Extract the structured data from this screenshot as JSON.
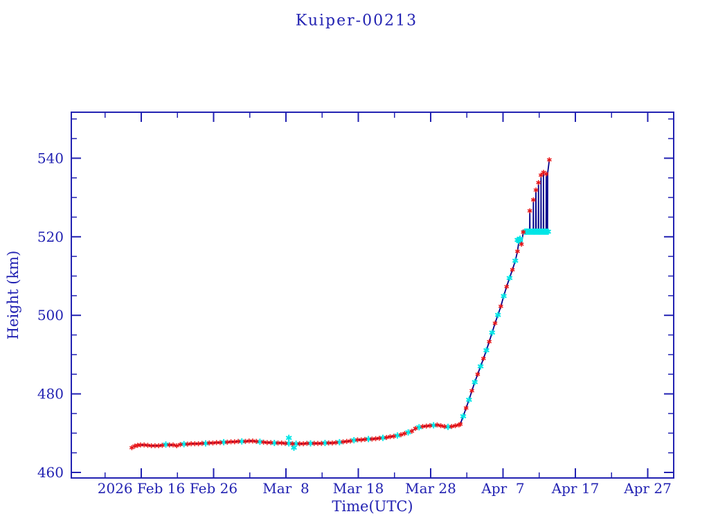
{
  "chart_data": {
    "type": "line",
    "title": "Kuiper-00213",
    "xlabel": "Time(UTC)",
    "ylabel": "Height (km)",
    "x_unit": "days since 2026 Feb 16 (UTC)",
    "xlim_days": [
      -9.7,
      73.6
    ],
    "ylim": [
      458.4,
      552.6
    ],
    "grid": false,
    "legend": "none",
    "colors": {
      "axis": "#2222b2",
      "track_line": "#00008b",
      "red_marker": "#e81416",
      "cyan_marker": "#00e6e6"
    },
    "x_ticks_major": [
      {
        "d": 0,
        "label": "2026 Feb 16"
      },
      {
        "d": 10,
        "label": "Feb 26"
      },
      {
        "d": 20,
        "label": "Mar  8"
      },
      {
        "d": 30,
        "label": "Mar 18"
      },
      {
        "d": 40,
        "label": "Mar 28"
      },
      {
        "d": 50,
        "label": "Apr  7"
      },
      {
        "d": 60,
        "label": "Apr 17"
      },
      {
        "d": 70,
        "label": "Apr 27"
      }
    ],
    "x_ticks_minor_days": [
      -5,
      5,
      15,
      25,
      35,
      45,
      55,
      65
    ],
    "y_ticks_major": [
      460,
      480,
      500,
      520,
      540
    ],
    "y_ticks_minor": [
      465,
      470,
      475,
      485,
      490,
      495,
      505,
      510,
      515,
      525,
      530,
      535,
      545,
      550
    ],
    "track_points_format": "[days_since_Feb16, height_km, marker(0=none,1=red,2=cyan)]",
    "track": [
      [
        -1.3,
        466.3,
        1
      ],
      [
        -0.9,
        466.7,
        1
      ],
      [
        -0.5,
        466.9,
        1
      ],
      [
        -0.1,
        467.0,
        1
      ],
      [
        0.4,
        467.0,
        1
      ],
      [
        0.9,
        466.9,
        1
      ],
      [
        1.4,
        466.8,
        1
      ],
      [
        1.9,
        466.8,
        1
      ],
      [
        2.4,
        466.8,
        1
      ],
      [
        2.9,
        466.9,
        1
      ],
      [
        3.4,
        467.1,
        2
      ],
      [
        3.9,
        467.0,
        1
      ],
      [
        4.4,
        467.0,
        1
      ],
      [
        4.9,
        466.8,
        1
      ],
      [
        5.4,
        467.1,
        1
      ],
      [
        5.9,
        467.2,
        2
      ],
      [
        6.4,
        467.2,
        1
      ],
      [
        6.9,
        467.3,
        1
      ],
      [
        7.4,
        467.3,
        1
      ],
      [
        7.9,
        467.3,
        1
      ],
      [
        8.4,
        467.4,
        1
      ],
      [
        8.9,
        467.4,
        2
      ],
      [
        9.4,
        467.5,
        1
      ],
      [
        9.9,
        467.5,
        1
      ],
      [
        10.4,
        467.6,
        1
      ],
      [
        10.9,
        467.6,
        1
      ],
      [
        11.4,
        467.7,
        2
      ],
      [
        11.9,
        467.7,
        1
      ],
      [
        12.4,
        467.8,
        1
      ],
      [
        12.9,
        467.8,
        1
      ],
      [
        13.4,
        467.9,
        1
      ],
      [
        13.9,
        467.9,
        2
      ],
      [
        14.4,
        467.9,
        1
      ],
      [
        14.9,
        468.0,
        1
      ],
      [
        15.4,
        468.0,
        1
      ],
      [
        15.9,
        467.9,
        1
      ],
      [
        16.4,
        467.8,
        2
      ],
      [
        16.9,
        467.7,
        1
      ],
      [
        17.4,
        467.6,
        1
      ],
      [
        17.9,
        467.6,
        1
      ],
      [
        18.4,
        467.5,
        2
      ],
      [
        18.9,
        467.5,
        1
      ],
      [
        19.4,
        467.5,
        1
      ],
      [
        19.9,
        467.4,
        1
      ],
      [
        20.4,
        467.4,
        2
      ],
      [
        20.9,
        467.3,
        1
      ],
      [
        21.4,
        467.3,
        2
      ],
      [
        21.9,
        467.3,
        1
      ],
      [
        22.4,
        467.3,
        1
      ],
      [
        22.9,
        467.4,
        1
      ],
      [
        23.4,
        467.4,
        2
      ],
      [
        23.9,
        467.4,
        1
      ],
      [
        24.4,
        467.4,
        1
      ],
      [
        24.9,
        467.4,
        1
      ],
      [
        25.4,
        467.5,
        2
      ],
      [
        25.9,
        467.5,
        1
      ],
      [
        26.4,
        467.5,
        1
      ],
      [
        26.9,
        467.6,
        1
      ],
      [
        27.4,
        467.7,
        2
      ],
      [
        27.9,
        467.8,
        1
      ],
      [
        28.4,
        467.9,
        1
      ],
      [
        28.9,
        468.0,
        1
      ],
      [
        29.4,
        468.2,
        2
      ],
      [
        29.9,
        468.3,
        1
      ],
      [
        30.4,
        468.3,
        1
      ],
      [
        30.9,
        468.4,
        1
      ],
      [
        31.4,
        468.5,
        2
      ],
      [
        31.9,
        468.5,
        1
      ],
      [
        32.4,
        468.6,
        1
      ],
      [
        32.9,
        468.7,
        1
      ],
      [
        33.4,
        468.8,
        2
      ],
      [
        33.9,
        468.9,
        1
      ],
      [
        34.4,
        469.1,
        1
      ],
      [
        34.9,
        469.2,
        1
      ],
      [
        35.4,
        469.4,
        2
      ],
      [
        35.9,
        469.6,
        1
      ],
      [
        36.4,
        469.9,
        1
      ],
      [
        36.9,
        470.2,
        2
      ],
      [
        37.4,
        470.5,
        1
      ],
      [
        37.9,
        471.2,
        1
      ],
      [
        38.4,
        471.5,
        2
      ],
      [
        38.9,
        471.7,
        1
      ],
      [
        39.4,
        471.8,
        1
      ],
      [
        39.9,
        471.9,
        1
      ],
      [
        40.4,
        472.0,
        2
      ],
      [
        40.9,
        472.1,
        1
      ],
      [
        41.4,
        471.9,
        1
      ],
      [
        41.9,
        471.7,
        1
      ],
      [
        42.4,
        471.6,
        2
      ],
      [
        42.9,
        471.7,
        1
      ],
      [
        43.4,
        471.9,
        1
      ],
      [
        43.9,
        472.1,
        1
      ],
      [
        44.1,
        472.3,
        1
      ],
      [
        44.5,
        474.3,
        2
      ],
      [
        44.9,
        476.4,
        1
      ],
      [
        45.3,
        478.5,
        2
      ],
      [
        45.7,
        480.8,
        1
      ],
      [
        46.1,
        483.0,
        2
      ],
      [
        46.5,
        485.0,
        1
      ],
      [
        46.9,
        487.0,
        2
      ],
      [
        47.3,
        489.0,
        1
      ],
      [
        47.7,
        491.1,
        2
      ],
      [
        48.1,
        493.3,
        1
      ],
      [
        48.5,
        495.6,
        2
      ],
      [
        48.9,
        498.0,
        1
      ],
      [
        49.3,
        500.1,
        2
      ],
      [
        49.7,
        502.3,
        1
      ],
      [
        50.1,
        504.9,
        2
      ],
      [
        50.5,
        507.3,
        1
      ],
      [
        50.9,
        509.5,
        2
      ],
      [
        51.3,
        511.6,
        1
      ],
      [
        51.7,
        513.9,
        2
      ],
      [
        52.0,
        516.3,
        1
      ],
      [
        52.2,
        518.9,
        2
      ],
      [
        52.35,
        519.5,
        2
      ],
      [
        52.55,
        518.1,
        1
      ],
      [
        52.8,
        521.2,
        1
      ],
      [
        53.0,
        521.3,
        0
      ],
      [
        53.2,
        521.3,
        2
      ],
      [
        53.45,
        521.3,
        0
      ],
      [
        53.68,
        521.3,
        0
      ],
      [
        53.7,
        526.6,
        1
      ],
      [
        53.72,
        521.3,
        0
      ],
      [
        53.95,
        521.3,
        0
      ],
      [
        54.18,
        521.3,
        0
      ],
      [
        54.2,
        529.4,
        1
      ],
      [
        54.22,
        521.3,
        0
      ],
      [
        54.45,
        521.3,
        0
      ],
      [
        54.53,
        521.3,
        0
      ],
      [
        54.55,
        531.9,
        1
      ],
      [
        54.57,
        521.3,
        0
      ],
      [
        54.75,
        521.3,
        0
      ],
      [
        54.88,
        521.3,
        0
      ],
      [
        54.9,
        533.8,
        1
      ],
      [
        54.92,
        521.3,
        0
      ],
      [
        55.1,
        521.3,
        0
      ],
      [
        55.23,
        521.3,
        0
      ],
      [
        55.25,
        535.7,
        1
      ],
      [
        55.27,
        521.3,
        0
      ],
      [
        55.45,
        521.3,
        0
      ],
      [
        55.58,
        521.3,
        0
      ],
      [
        55.6,
        536.4,
        1
      ],
      [
        55.62,
        521.3,
        0
      ],
      [
        55.8,
        521.3,
        0
      ],
      [
        55.95,
        521.3,
        0
      ],
      [
        55.97,
        536.0,
        1
      ],
      [
        55.99,
        521.4,
        0
      ],
      [
        56.15,
        521.4,
        0
      ],
      [
        56.17,
        536.2,
        0
      ],
      [
        56.4,
        539.6,
        1
      ]
    ],
    "cyan_outliers": [
      [
        20.4,
        468.8
      ],
      [
        21.1,
        466.3
      ]
    ],
    "cyan_band": {
      "d_start": 53.0,
      "d_end": 56.3,
      "height": 521.3
    },
    "cyan_band2": {
      "d_start": 52.0,
      "d_end": 52.5,
      "height": 519.2
    }
  }
}
